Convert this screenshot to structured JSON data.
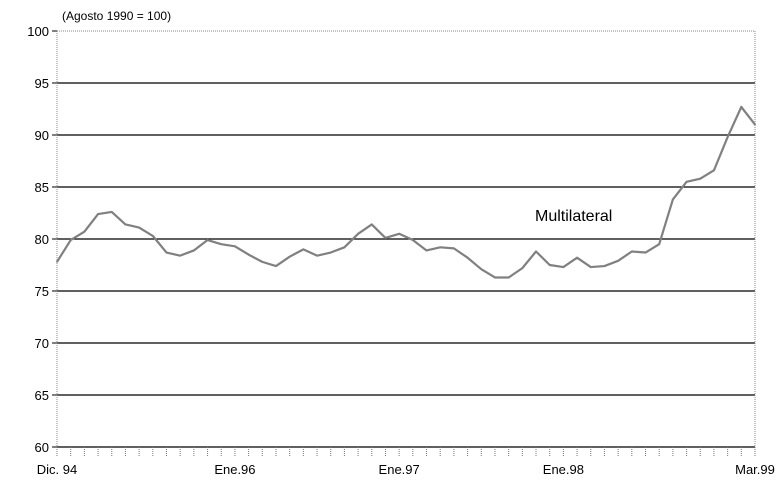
{
  "chart_data": {
    "type": "line",
    "subtitle": "(Agosto 1990 = 100)",
    "annotation": "Multilateral",
    "ylim": [
      60,
      100
    ],
    "yticks": [
      60,
      65,
      70,
      75,
      80,
      85,
      90,
      95,
      100
    ],
    "x_tick_labels": [
      {
        "index": 0,
        "label": "Dic. 94"
      },
      {
        "index": 13,
        "label": "Ene.96"
      },
      {
        "index": 25,
        "label": "Ene.97"
      },
      {
        "index": 37,
        "label": "Ene.98"
      },
      {
        "index": 51,
        "label": "Mar.99"
      }
    ],
    "grid": true,
    "series": [
      {
        "color": "#808080",
        "values": [
          77.8,
          79.9,
          80.7,
          82.4,
          82.6,
          81.4,
          81.1,
          80.3,
          78.7,
          78.4,
          78.9,
          79.9,
          79.5,
          79.3,
          78.5,
          77.8,
          77.4,
          78.3,
          79.0,
          78.4,
          78.7,
          79.2,
          80.5,
          81.4,
          80.1,
          80.5,
          79.9,
          78.9,
          79.2,
          79.1,
          78.2,
          77.1,
          76.3,
          76.3,
          77.2,
          78.8,
          77.5,
          77.3,
          78.2,
          77.3,
          77.4,
          77.9,
          78.8,
          78.7,
          79.5,
          83.8,
          85.5,
          85.8,
          86.6,
          89.8,
          92.7,
          91.0
        ]
      }
    ]
  }
}
